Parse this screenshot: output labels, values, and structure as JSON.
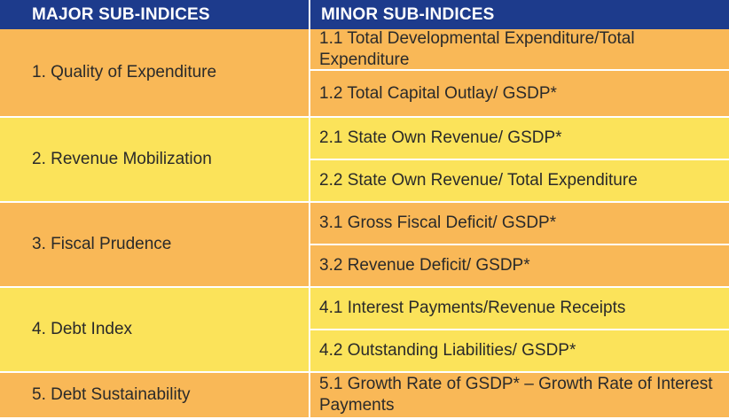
{
  "header": {
    "major": "MAJOR SUB-INDICES",
    "minor": "MINOR SUB-INDICES"
  },
  "groups": [
    {
      "major": "1. Quality of Expenditure",
      "minors": [
        "1.1 Total Developmental Expenditure/Total Expenditure",
        "1.2 Total Capital Outlay/ GSDP*"
      ]
    },
    {
      "major": "2. Revenue Mobilization",
      "minors": [
        "2.1 State Own Revenue/ GSDP*",
        "2.2 State Own Revenue/ Total Expenditure"
      ]
    },
    {
      "major": "3. Fiscal Prudence",
      "minors": [
        "3.1 Gross Fiscal Deficit/ GSDP*",
        "3.2 Revenue Deficit/ GSDP*"
      ]
    },
    {
      "major": "4. Debt Index",
      "minors": [
        "4.1 Interest Payments/Revenue Receipts",
        "4.2 Outstanding Liabilities/ GSDP*"
      ]
    },
    {
      "major": "5. Debt Sustainability",
      "minors": [
        "5.1 Growth Rate of GSDP* – Growth Rate of Interest Payments"
      ]
    }
  ],
  "colors": {
    "header_bg": "#1d3b8c",
    "orange_row": "#f9b857",
    "yellow_row": "#fbe35a"
  }
}
